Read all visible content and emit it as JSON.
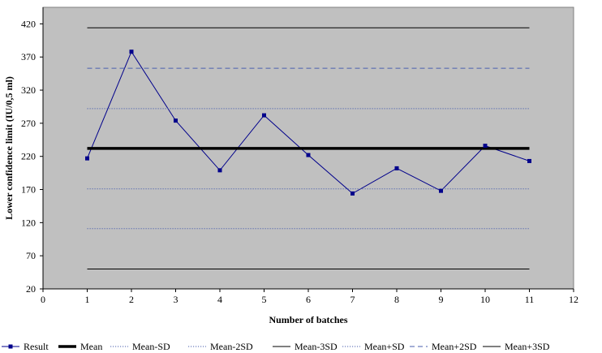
{
  "chart_data": {
    "type": "line",
    "title": "",
    "xlabel": "Number of batches",
    "ylabel": "Lower confidence limit (IU/0,5 ml)",
    "xlim": [
      0,
      12
    ],
    "ylim": [
      20,
      445
    ],
    "x_ticks": [
      0,
      1,
      2,
      3,
      4,
      5,
      6,
      7,
      8,
      9,
      10,
      11,
      12
    ],
    "y_ticks": [
      20,
      70,
      120,
      170,
      220,
      270,
      320,
      370,
      420
    ],
    "grid": false,
    "plot_background": "#c0c0c0",
    "legend_position": "bottom",
    "series": [
      {
        "name": "Result",
        "color": "#00008b",
        "style": "line-marker",
        "x": [
          1,
          2,
          3,
          4,
          5,
          6,
          7,
          8,
          9,
          10,
          11
        ],
        "y": [
          217,
          378,
          274,
          199,
          282,
          222,
          164,
          202,
          168,
          236,
          213
        ]
      },
      {
        "name": "Mean",
        "color": "#000000",
        "style": "thick-solid",
        "x": [
          1,
          11
        ],
        "y": [
          232,
          232
        ]
      },
      {
        "name": "Mean-SD",
        "color": "#4a5fae",
        "style": "dotted",
        "x": [
          1,
          11
        ],
        "y": [
          171,
          171
        ]
      },
      {
        "name": "Mean-2SD",
        "color": "#4a5fae",
        "style": "dotted",
        "x": [
          1,
          11
        ],
        "y": [
          111,
          111
        ]
      },
      {
        "name": "Mean-3SD",
        "color": "#000000",
        "style": "thin-solid",
        "x": [
          1,
          11
        ],
        "y": [
          50,
          50
        ]
      },
      {
        "name": "Mean+SD",
        "color": "#4a5fae",
        "style": "dotted",
        "x": [
          1,
          11
        ],
        "y": [
          292,
          292
        ]
      },
      {
        "name": "Mean+2SD",
        "color": "#4a5fae",
        "style": "dashed",
        "x": [
          1,
          11
        ],
        "y": [
          353,
          353
        ]
      },
      {
        "name": "Mean+3SD",
        "color": "#000000",
        "style": "thin-solid",
        "x": [
          1,
          11
        ],
        "y": [
          414,
          414
        ]
      }
    ]
  }
}
